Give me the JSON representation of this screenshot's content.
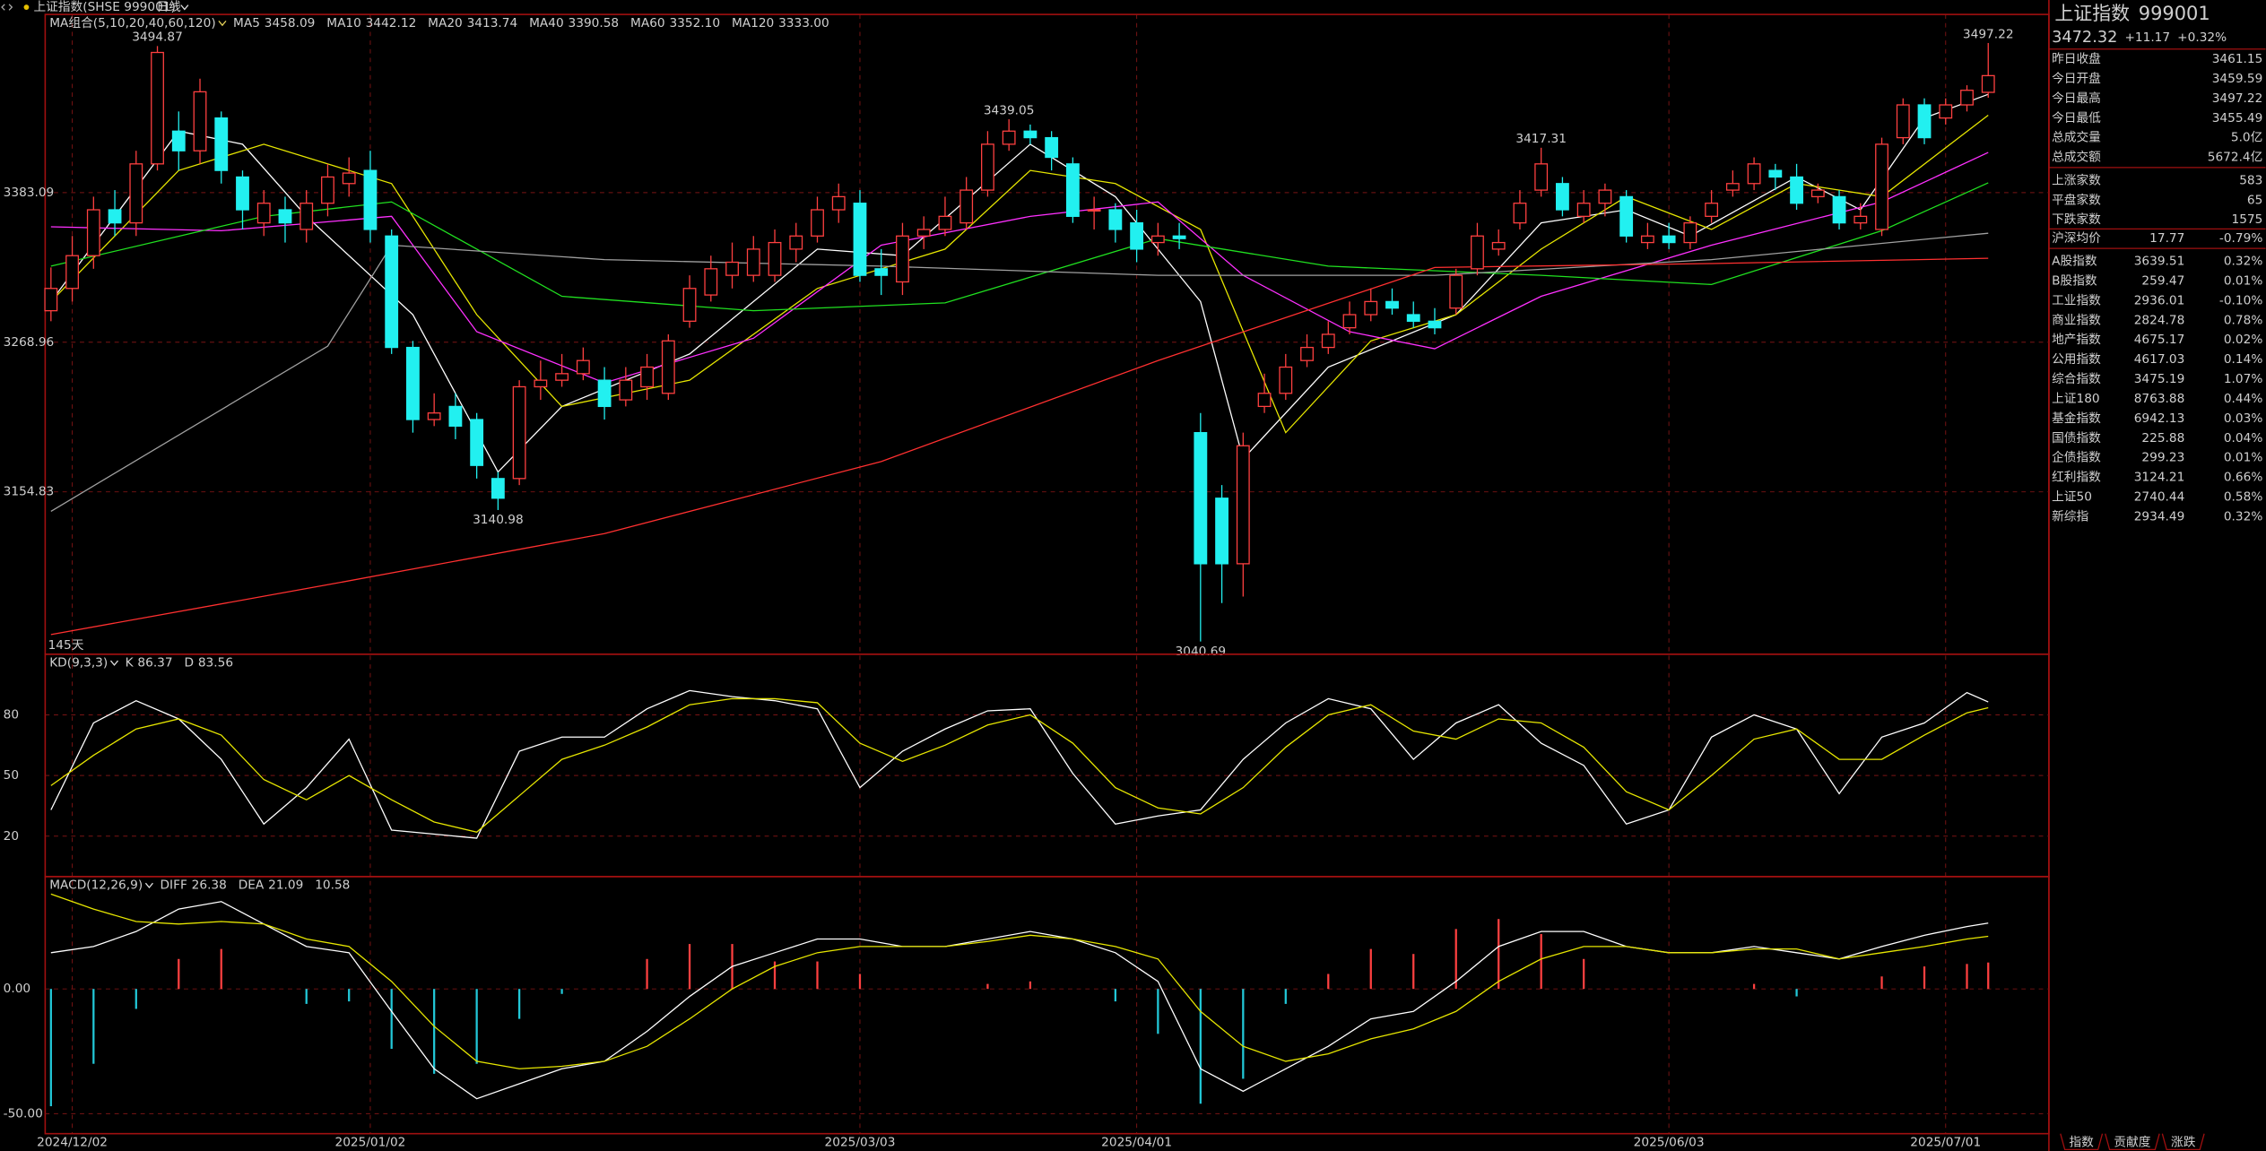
{
  "header": {
    "title": "上证指数(SHSE 999001)",
    "period": "日线"
  },
  "chart_data": [
    {
      "type": "candlestick",
      "title": "MA组合(5,10,20,40,60,120)",
      "span_label": "145天",
      "up_color": "#ff4040",
      "down_color": "#22f0f0",
      "ylim": [
        3031,
        3519
      ],
      "yticks": [
        3383.09,
        3268.96,
        3154.83
      ],
      "grid": true,
      "xticks": [
        {
          "value": 1,
          "label": "2024/12/02"
        },
        {
          "value": 15,
          "label": "2025/01/02"
        },
        {
          "value": 38,
          "label": "2025/03/03"
        },
        {
          "value": 51,
          "label": "2025/04/01"
        },
        {
          "value": 76,
          "label": "2025/06/03"
        },
        {
          "value": 89,
          "label": "2025/07/01"
        }
      ],
      "open": [
        3293,
        3310,
        3335,
        3370,
        3360,
        3405,
        3430,
        3415,
        3440,
        3395,
        3360,
        3370,
        3355,
        3375,
        3390,
        3400,
        3350,
        3265,
        3210,
        3220,
        3210,
        3165,
        3165,
        3235,
        3240,
        3245,
        3240,
        3225,
        3235,
        3230,
        3285,
        3305,
        3320,
        3320,
        3320,
        3340,
        3350,
        3370,
        3375,
        3325,
        3315,
        3350,
        3355,
        3360,
        3385,
        3420,
        3430,
        3425,
        3405,
        3370,
        3370,
        3360,
        3345,
        3350,
        3200,
        3150,
        3100,
        3220,
        3230,
        3255,
        3265,
        3280,
        3290,
        3300,
        3290,
        3285,
        3295,
        3325,
        3340,
        3360,
        3385,
        3390,
        3365,
        3375,
        3380,
        3345,
        3350,
        3345,
        3365,
        3385,
        3390,
        3400,
        3395,
        3380,
        3380,
        3360,
        3355,
        3425,
        3450,
        3440,
        3450,
        3459.59
      ],
      "high": [
        3326,
        3350,
        3380,
        3385,
        3415,
        3494.87,
        3445,
        3470,
        3445,
        3400,
        3385,
        3380,
        3385,
        3405,
        3410,
        3415,
        3355,
        3270,
        3230,
        3230,
        3215,
        3170,
        3240,
        3255,
        3260,
        3265,
        3250,
        3250,
        3260,
        3275,
        3320,
        3335,
        3345,
        3350,
        3355,
        3360,
        3380,
        3390,
        3385,
        3340,
        3360,
        3365,
        3380,
        3395,
        3430,
        3439.05,
        3435,
        3430,
        3410,
        3380,
        3375,
        3370,
        3360,
        3360,
        3215,
        3160,
        3200,
        3245,
        3260,
        3275,
        3285,
        3300,
        3310,
        3310,
        3300,
        3295,
        3325,
        3360,
        3355,
        3385,
        3417.31,
        3395,
        3385,
        3390,
        3385,
        3360,
        3360,
        3365,
        3385,
        3400,
        3410,
        3405,
        3405,
        3390,
        3385,
        3375,
        3425,
        3455,
        3455,
        3455,
        3465,
        3497.22
      ],
      "low": [
        3285,
        3300,
        3325,
        3350,
        3350,
        3400,
        3400,
        3405,
        3390,
        3355,
        3350,
        3345,
        3345,
        3365,
        3380,
        3345,
        3260,
        3200,
        3205,
        3195,
        3165,
        3140.98,
        3160,
        3225,
        3235,
        3240,
        3210,
        3220,
        3225,
        3225,
        3280,
        3300,
        3310,
        3315,
        3315,
        3330,
        3345,
        3360,
        3315,
        3305,
        3305,
        3340,
        3350,
        3355,
        3380,
        3415,
        3420,
        3400,
        3360,
        3355,
        3345,
        3330,
        3335,
        3340,
        3040.69,
        3070,
        3075,
        3215,
        3225,
        3250,
        3260,
        3275,
        3285,
        3290,
        3280,
        3275,
        3290,
        3320,
        3335,
        3355,
        3380,
        3365,
        3360,
        3365,
        3345,
        3340,
        3340,
        3340,
        3360,
        3380,
        3385,
        3385,
        3370,
        3375,
        3355,
        3355,
        3350,
        3420,
        3420,
        3435,
        3445,
        3455.49
      ],
      "close": [
        3310,
        3335,
        3370,
        3360,
        3405,
        3490,
        3415,
        3460,
        3400,
        3370,
        3375,
        3360,
        3375,
        3395,
        3398,
        3355,
        3265,
        3210,
        3215,
        3205,
        3175,
        3150,
        3235,
        3240,
        3245,
        3255,
        3220,
        3240,
        3250,
        3270,
        3310,
        3325,
        3330,
        3340,
        3345,
        3350,
        3370,
        3380,
        3320,
        3320,
        3350,
        3355,
        3365,
        3385,
        3420,
        3430,
        3425,
        3410,
        3365,
        3370,
        3355,
        3340,
        3350,
        3348,
        3100,
        3100,
        3190,
        3230,
        3250,
        3265,
        3275,
        3290,
        3300,
        3295,
        3285,
        3280,
        3320,
        3350,
        3345,
        3375,
        3405,
        3370,
        3375,
        3385,
        3350,
        3350,
        3345,
        3360,
        3375,
        3390,
        3405,
        3395,
        3375,
        3385,
        3360,
        3365,
        3420,
        3450,
        3425,
        3450,
        3461.15,
        3472.32
      ],
      "annotations": [
        {
          "x": 5,
          "value": 3494.87
        },
        {
          "x": 21,
          "value": 3140.98
        },
        {
          "x": 45,
          "value": 3439.05
        },
        {
          "x": 54,
          "value": 3040.69
        },
        {
          "x": 70,
          "value": 3417.31
        },
        {
          "x": 91,
          "value": 3497.22
        }
      ],
      "ma": [
        {
          "name": "MA5",
          "color": "#ffffff",
          "x": [
            0,
            6,
            9,
            12,
            17,
            21,
            24,
            30,
            36,
            40,
            46,
            50,
            54,
            56,
            60,
            66,
            70,
            74,
            77,
            82,
            85,
            88,
            91
          ],
          "values": [
            3300,
            3430,
            3420,
            3365,
            3290,
            3170,
            3220,
            3260,
            3340,
            3335,
            3420,
            3380,
            3300,
            3180,
            3250,
            3290,
            3360,
            3370,
            3350,
            3395,
            3370,
            3440,
            3458.09
          ]
        },
        {
          "name": "MA10",
          "color": "#e6e600",
          "x": [
            0,
            6,
            10,
            16,
            20,
            24,
            30,
            36,
            42,
            46,
            50,
            54,
            58,
            62,
            66,
            70,
            74,
            78,
            82,
            86,
            91
          ],
          "values": [
            3300,
            3400,
            3420,
            3390,
            3290,
            3220,
            3240,
            3310,
            3340,
            3400,
            3390,
            3355,
            3200,
            3270,
            3290,
            3340,
            3380,
            3355,
            3390,
            3380,
            3442.12
          ]
        },
        {
          "name": "MA20",
          "color": "#ff30ff",
          "x": [
            0,
            8,
            16,
            20,
            26,
            33,
            39,
            46,
            52,
            56,
            61,
            65,
            70,
            78,
            86,
            91
          ],
          "values": [
            3357,
            3354,
            3365,
            3277,
            3238,
            3272,
            3343,
            3365,
            3376,
            3320,
            3277,
            3264,
            3304,
            3343,
            3376,
            3413.74
          ]
        },
        {
          "name": "MA40",
          "color": "#20e020",
          "x": [
            0,
            10,
            16,
            24,
            33,
            42,
            52,
            60,
            70,
            78,
            86,
            91
          ],
          "values": [
            3327,
            3365,
            3376,
            3304,
            3293,
            3299,
            3348,
            3327,
            3320,
            3313,
            3354,
            3390.58
          ]
        },
        {
          "name": "MA60",
          "color": "#a0a0a0",
          "x": [
            0,
            13,
            16,
            26,
            39,
            52,
            65,
            78,
            91
          ],
          "values": [
            3140,
            3266,
            3343,
            3332,
            3327,
            3320,
            3320,
            3332,
            3352.1
          ],
          "value_labels": [
            null,
            null,
            null,
            null,
            null,
            null,
            null,
            null,
            "3352.10"
          ]
        },
        {
          "name": "MA120",
          "color": "#ff3030",
          "x": [
            0,
            13,
            26,
            39,
            52,
            65,
            78,
            91
          ],
          "values": [
            3046,
            3084,
            3123,
            3178,
            3255,
            3326,
            3329,
            3333
          ],
          "value_labels": [
            null,
            null,
            null,
            null,
            null,
            null,
            null,
            "3333.00"
          ]
        }
      ]
    },
    {
      "type": "line",
      "title": "KD(9,3,3)",
      "ylim": [
        0,
        110
      ],
      "yticks": [
        80,
        50,
        20
      ],
      "grid": true,
      "x": [
        0,
        2,
        4,
        6,
        8,
        10,
        12,
        14,
        16,
        18,
        20,
        22,
        24,
        26,
        28,
        30,
        32,
        34,
        36,
        38,
        40,
        42,
        44,
        46,
        48,
        50,
        52,
        54,
        56,
        58,
        60,
        62,
        64,
        66,
        68,
        70,
        72,
        74,
        76,
        78,
        80,
        82,
        84,
        86,
        88,
        90,
        91
      ],
      "series": [
        {
          "name": "K",
          "color": "#ffffff",
          "values": [
            33,
            76,
            87,
            78,
            58,
            26,
            44,
            68,
            23,
            21,
            19,
            62,
            69,
            69,
            83,
            92,
            89,
            87,
            83,
            44,
            62,
            73,
            82,
            83,
            51,
            26,
            30,
            33,
            58,
            76,
            88,
            83,
            58,
            76,
            85,
            66,
            55,
            26,
            33,
            69,
            80,
            73,
            41,
            69,
            76,
            91,
            86.37
          ]
        },
        {
          "name": "D",
          "color": "#e6e600",
          "values": [
            45,
            60,
            73,
            78,
            70,
            48,
            38,
            50,
            38,
            27,
            22,
            40,
            58,
            65,
            74,
            85,
            88,
            88,
            86,
            66,
            57,
            65,
            75,
            80,
            66,
            44,
            34,
            31,
            44,
            64,
            80,
            85,
            72,
            68,
            78,
            76,
            64,
            42,
            33,
            50,
            68,
            73,
            58,
            58,
            70,
            81,
            83.56
          ]
        }
      ]
    },
    {
      "type": "macd",
      "title": "MACD(12,26,9)",
      "ylim": [
        -58,
        45
      ],
      "yticks": [
        {
          "value": 0,
          "label": "0.00"
        },
        {
          "value": -50,
          "label": "-50.00"
        }
      ],
      "grid": true,
      "x": [
        0,
        2,
        4,
        6,
        8,
        10,
        12,
        14,
        16,
        18,
        20,
        22,
        24,
        26,
        28,
        30,
        32,
        34,
        36,
        38,
        40,
        42,
        44,
        46,
        48,
        50,
        52,
        54,
        56,
        58,
        60,
        62,
        64,
        66,
        68,
        70,
        72,
        74,
        76,
        78,
        80,
        82,
        84,
        86,
        88,
        90,
        91
      ],
      "series": [
        {
          "name": "DIFF",
          "color": "#ffffff",
          "values": [
            14.5,
            17,
            23,
            32,
            35,
            26,
            17,
            14.5,
            -9,
            -32,
            -44,
            -38,
            -32,
            -29,
            -17,
            -3,
            9,
            14.5,
            20,
            20,
            17,
            17,
            20,
            23,
            20,
            14.5,
            3,
            -32,
            -41,
            -32,
            -23,
            -12,
            -9,
            3,
            17,
            23,
            23,
            17,
            14.5,
            14.5,
            17,
            14.5,
            12,
            17,
            21.5,
            25,
            26.38
          ]
        },
        {
          "name": "DEA",
          "color": "#e6e600",
          "values": [
            38,
            32,
            27,
            26,
            27,
            26,
            20,
            17,
            3,
            -15,
            -29,
            -32,
            -31,
            -29,
            -23,
            -12,
            0,
            9,
            14.5,
            17,
            17,
            17,
            19,
            21.5,
            20,
            17,
            12,
            -9,
            -23,
            -29,
            -26,
            -20,
            -16,
            -9,
            3,
            12,
            17,
            17,
            14.5,
            14.5,
            16,
            16,
            12,
            14.5,
            17,
            20,
            21.09
          ]
        }
      ],
      "histogram": {
        "up_color": "#ff4040",
        "down_color": "#22c8d8",
        "values": [
          -47,
          -30,
          -8,
          12,
          16,
          0,
          -6,
          -5,
          -24,
          -34,
          -30,
          -12,
          -2,
          0,
          12,
          18,
          18,
          11,
          11,
          6,
          0,
          0,
          2,
          3,
          0,
          -5,
          -18,
          -46,
          -36,
          -6,
          6,
          16,
          14,
          24,
          28,
          22,
          12,
          0,
          0,
          0,
          2,
          -3,
          0,
          5,
          9,
          10,
          10.58
        ]
      }
    }
  ],
  "sidebar": {
    "title": "上证指数",
    "code": "999001",
    "price": "3472.32",
    "change": "+11.17",
    "pct": "+0.32%",
    "quote": [
      {
        "label": "昨日收盘",
        "value": "3461.15",
        "color": "#ffffff"
      },
      {
        "label": "今日开盘",
        "value": "3459.59",
        "color": "#30d030"
      },
      {
        "label": "今日最高",
        "value": "3497.22",
        "color": "#ff4040"
      },
      {
        "label": "今日最低",
        "value": "3455.49",
        "color": "#30d030"
      },
      {
        "label": "总成交量",
        "value": "5.0亿",
        "color": "#ff4040"
      },
      {
        "label": "总成交额",
        "value": "5672.4亿",
        "color": "#ff4040"
      }
    ],
    "breadth": [
      {
        "label": "上涨家数",
        "value": "583"
      },
      {
        "label": "平盘家数",
        "value": "65"
      },
      {
        "label": "下跌家数",
        "value": "1575"
      }
    ],
    "avg": {
      "label": "沪深均价",
      "value": "17.77",
      "pct": "-0.79%"
    },
    "indices": [
      {
        "name": "A股指数",
        "value": "3639.51",
        "pct": "0.32%"
      },
      {
        "name": "B股指数",
        "value": "259.47",
        "pct": "0.01%"
      },
      {
        "name": "工业指数",
        "value": "2936.01",
        "pct": "-0.10%"
      },
      {
        "name": "商业指数",
        "value": "2824.78",
        "pct": "0.78%"
      },
      {
        "name": "地产指数",
        "value": "4675.17",
        "pct": "0.02%"
      },
      {
        "name": "公用指数",
        "value": "4617.03",
        "pct": "0.14%"
      },
      {
        "name": "综合指数",
        "value": "3475.19",
        "pct": "1.07%"
      },
      {
        "name": "上证180",
        "value": "8763.88",
        "pct": "0.44%"
      },
      {
        "name": "基金指数",
        "value": "6942.13",
        "pct": "0.03%"
      },
      {
        "name": "国债指数",
        "value": "225.88",
        "pct": "0.04%"
      },
      {
        "name": "企债指数",
        "value": "299.23",
        "pct": "0.01%"
      },
      {
        "name": "红利指数",
        "value": "3124.21",
        "pct": "0.66%"
      },
      {
        "name": "上证50",
        "value": "2740.44",
        "pct": "0.58%"
      },
      {
        "name": "新综指",
        "value": "2934.49",
        "pct": "0.32%"
      }
    ],
    "tabs": [
      "指数",
      "贡献度",
      "涨跌"
    ]
  }
}
